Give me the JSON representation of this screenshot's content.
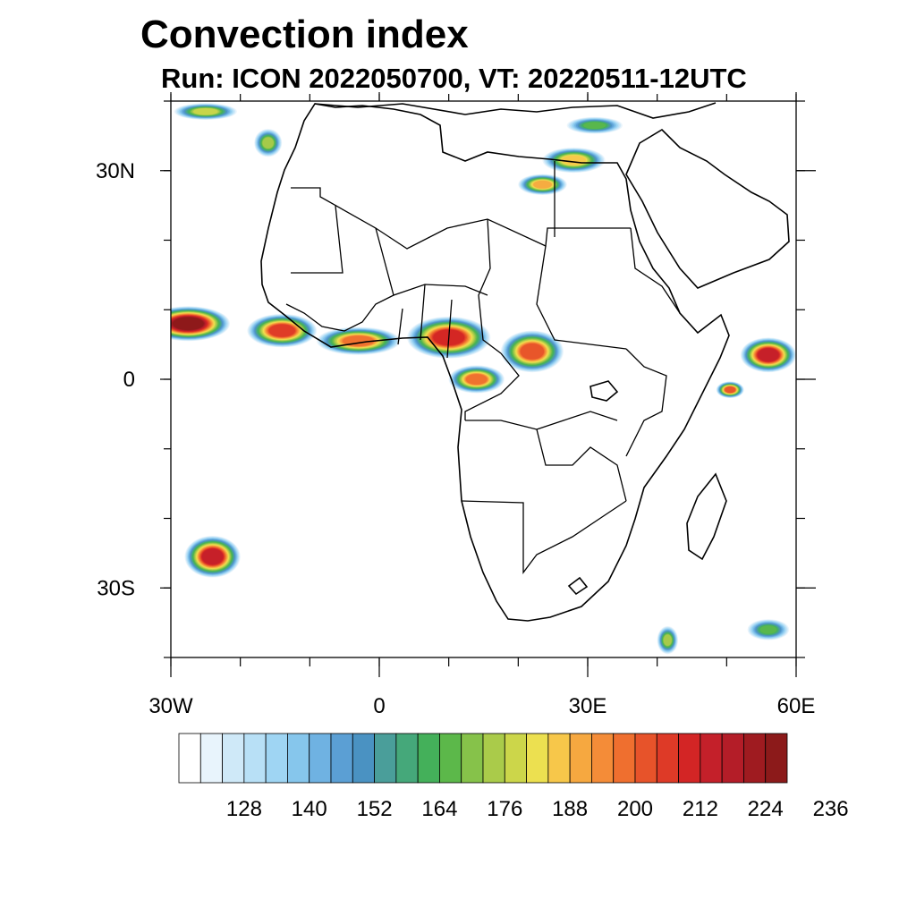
{
  "title": "Convection index",
  "subtitle": "Run: ICON 2022050700,  VT: 20220511-12UTC",
  "map": {
    "extent": {
      "lon_min": -30,
      "lon_max": 60,
      "lat_min": -40,
      "lat_max": 40
    },
    "projection": "equirectangular",
    "region": "Africa",
    "lat_ticks": [
      {
        "value": 30,
        "label": "30N"
      },
      {
        "value": 0,
        "label": "0"
      },
      {
        "value": -30,
        "label": "30S"
      }
    ],
    "lon_ticks": [
      {
        "value": -30,
        "label": "30W"
      },
      {
        "value": 0,
        "label": "0"
      },
      {
        "value": 30,
        "label": "30E"
      },
      {
        "value": 60,
        "label": "60E"
      }
    ],
    "minor_tick_step_deg": 10
  },
  "colorbar": {
    "labels": [
      "128",
      "140",
      "152",
      "164",
      "176",
      "188",
      "200",
      "212",
      "224",
      "236"
    ],
    "colors": [
      "#ffffff",
      "#e8f4fc",
      "#cfe9f8",
      "#b8e0f6",
      "#9fd5f3",
      "#86c6ec",
      "#6fb2e2",
      "#5b9fd4",
      "#4a92c2",
      "#4a9e9a",
      "#45a87a",
      "#44b05a",
      "#5cb84a",
      "#86c24a",
      "#aacb4a",
      "#ccd64a",
      "#ece050",
      "#f7c74a",
      "#f6a840",
      "#f48c38",
      "#ef6f2f",
      "#e7532a",
      "#de3a27",
      "#d32525",
      "#c4202a",
      "#b41d28",
      "#9f1b20",
      "#8c1a1a"
    ]
  },
  "contour_blobs": [
    {
      "lon": -27.5,
      "lat": 8.0,
      "rx": 6.0,
      "ry": 2.5,
      "level": 27
    },
    {
      "lon": -14.0,
      "lat": 7.0,
      "rx": 5.0,
      "ry": 2.4,
      "level": 22
    },
    {
      "lon": -3.0,
      "lat": 5.5,
      "rx": 6.0,
      "ry": 2.0,
      "level": 20
    },
    {
      "lon": 10.0,
      "lat": 6.0,
      "rx": 6.0,
      "ry": 3.0,
      "level": 23
    },
    {
      "lon": 22.0,
      "lat": 4.0,
      "rx": 4.5,
      "ry": 3.0,
      "level": 21
    },
    {
      "lon": 14.0,
      "lat": 0.0,
      "rx": 4.0,
      "ry": 2.0,
      "level": 20
    },
    {
      "lon": 28.0,
      "lat": 31.5,
      "rx": 4.5,
      "ry": 1.8,
      "level": 17
    },
    {
      "lon": 23.5,
      "lat": 28.0,
      "rx": 3.5,
      "ry": 1.5,
      "level": 18
    },
    {
      "lon": -16.0,
      "lat": 34.0,
      "rx": 2.0,
      "ry": 2.0,
      "level": 14
    },
    {
      "lon": 56.0,
      "lat": 3.5,
      "rx": 4.0,
      "ry": 2.5,
      "level": 24
    },
    {
      "lon": 50.5,
      "lat": -1.5,
      "rx": 2.0,
      "ry": 1.2,
      "level": 21
    },
    {
      "lon": -24.0,
      "lat": -25.5,
      "rx": 4.0,
      "ry": 3.0,
      "level": 24
    },
    {
      "lon": 41.5,
      "lat": -37.5,
      "rx": 1.5,
      "ry": 2.0,
      "level": 14
    },
    {
      "lon": 56.0,
      "lat": -36.0,
      "rx": 3.0,
      "ry": 1.5,
      "level": 12
    },
    {
      "lon": -25.0,
      "lat": 38.5,
      "rx": 4.5,
      "ry": 1.2,
      "level": 15
    },
    {
      "lon": 31.0,
      "lat": 36.5,
      "rx": 4.0,
      "ry": 1.2,
      "level": 12
    }
  ]
}
